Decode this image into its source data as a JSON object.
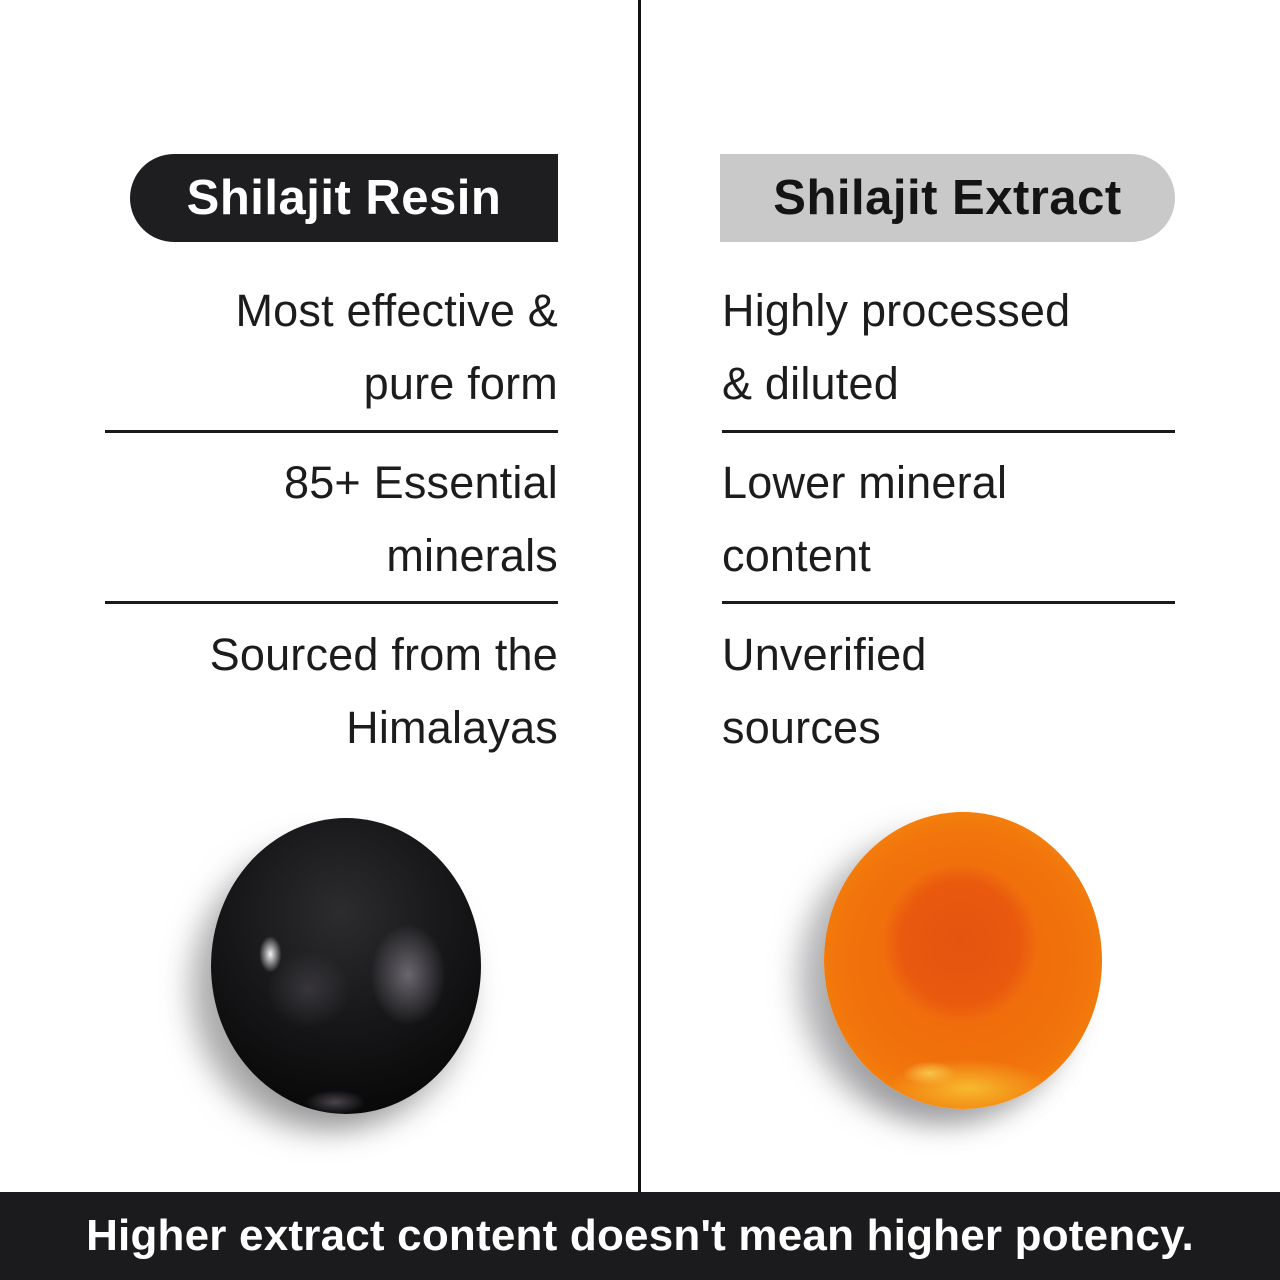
{
  "page": {
    "background_color": "#ffffff",
    "divider_color": "#121212"
  },
  "columns": {
    "resin": {
      "header": "Shilajit Resin",
      "header_bg_color": "#1e1e20",
      "header_text_color": "#ffffff",
      "points": [
        {
          "lines": [
            "Most effective &",
            "pure form"
          ]
        },
        {
          "lines": [
            "85+ Essential",
            "minerals"
          ]
        },
        {
          "lines": [
            "Sourced from the",
            "Himalayas"
          ]
        }
      ],
      "image": "black-glossy-shilajit-resin-ball",
      "image_main_color": "#121214"
    },
    "extract": {
      "header": "Shilajit Extract",
      "header_bg_color": "#c9c9c9",
      "header_text_color": "#141414",
      "points": [
        {
          "lines": [
            "Highly processed",
            "& diluted"
          ]
        },
        {
          "lines": [
            "Lower mineral",
            "content"
          ]
        },
        {
          "lines": [
            "Unverified",
            "sources"
          ]
        }
      ],
      "image": "orange-shilajit-extract-gummy-disc",
      "image_main_color": "#ee650d"
    }
  },
  "footer": {
    "text": "Higher extract content doesn't mean higher potency.",
    "bg_color": "#1b1b1d",
    "text_color": "#ffffff"
  }
}
